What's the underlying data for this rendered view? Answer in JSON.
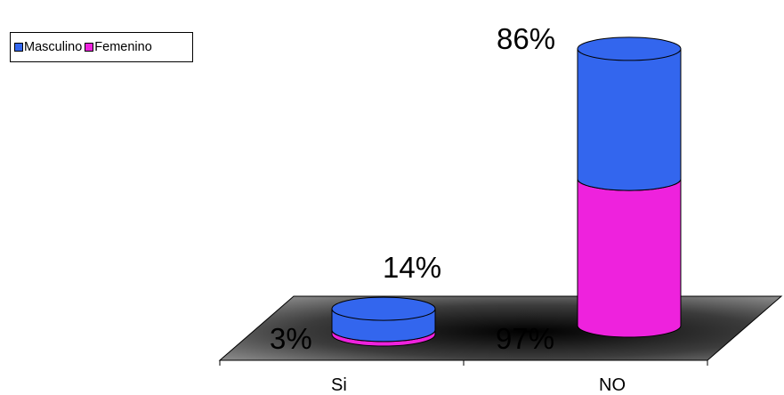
{
  "chart_data": {
    "type": "bar",
    "stacked": true,
    "three_d": true,
    "categories": [
      "Si",
      "NO"
    ],
    "series": [
      {
        "name": "Masculino",
        "values": [
          14,
          86
        ],
        "labels": [
          "14%",
          "86%"
        ]
      },
      {
        "name": "Femenino",
        "values": [
          3,
          97
        ],
        "labels": [
          "3%",
          "97%"
        ]
      }
    ],
    "title": "",
    "xlabel": "",
    "ylabel": "",
    "ylim": [
      0,
      200
    ],
    "grid": false,
    "legend_position": "top-left",
    "colors": {
      "Masculino": "#3366ee",
      "Femenino": "#ee22dd",
      "floor": "#6e6e6e"
    }
  }
}
